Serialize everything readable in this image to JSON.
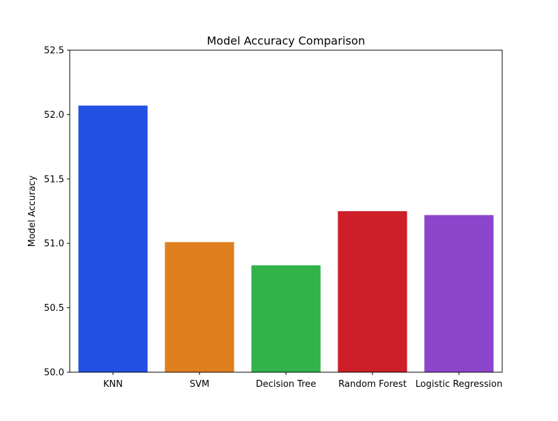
{
  "chart_data": {
    "type": "bar",
    "title": "Model Accuracy Comparison",
    "xlabel": "",
    "ylabel": "Model Accuracy",
    "categories": [
      "KNN",
      "SVM",
      "Decision Tree",
      "Random Forest",
      "Logistic Regression"
    ],
    "values": [
      52.07,
      51.01,
      50.83,
      51.25,
      51.22
    ],
    "colors": [
      "#2150e2",
      "#df7f20",
      "#31b34a",
      "#cc1f27",
      "#8a45cb"
    ],
    "ylim": [
      50.0,
      52.5
    ],
    "yticks": [
      "50.0",
      "50.5",
      "51.0",
      "51.5",
      "52.0",
      "52.5"
    ],
    "grid": false,
    "legend": "none"
  }
}
